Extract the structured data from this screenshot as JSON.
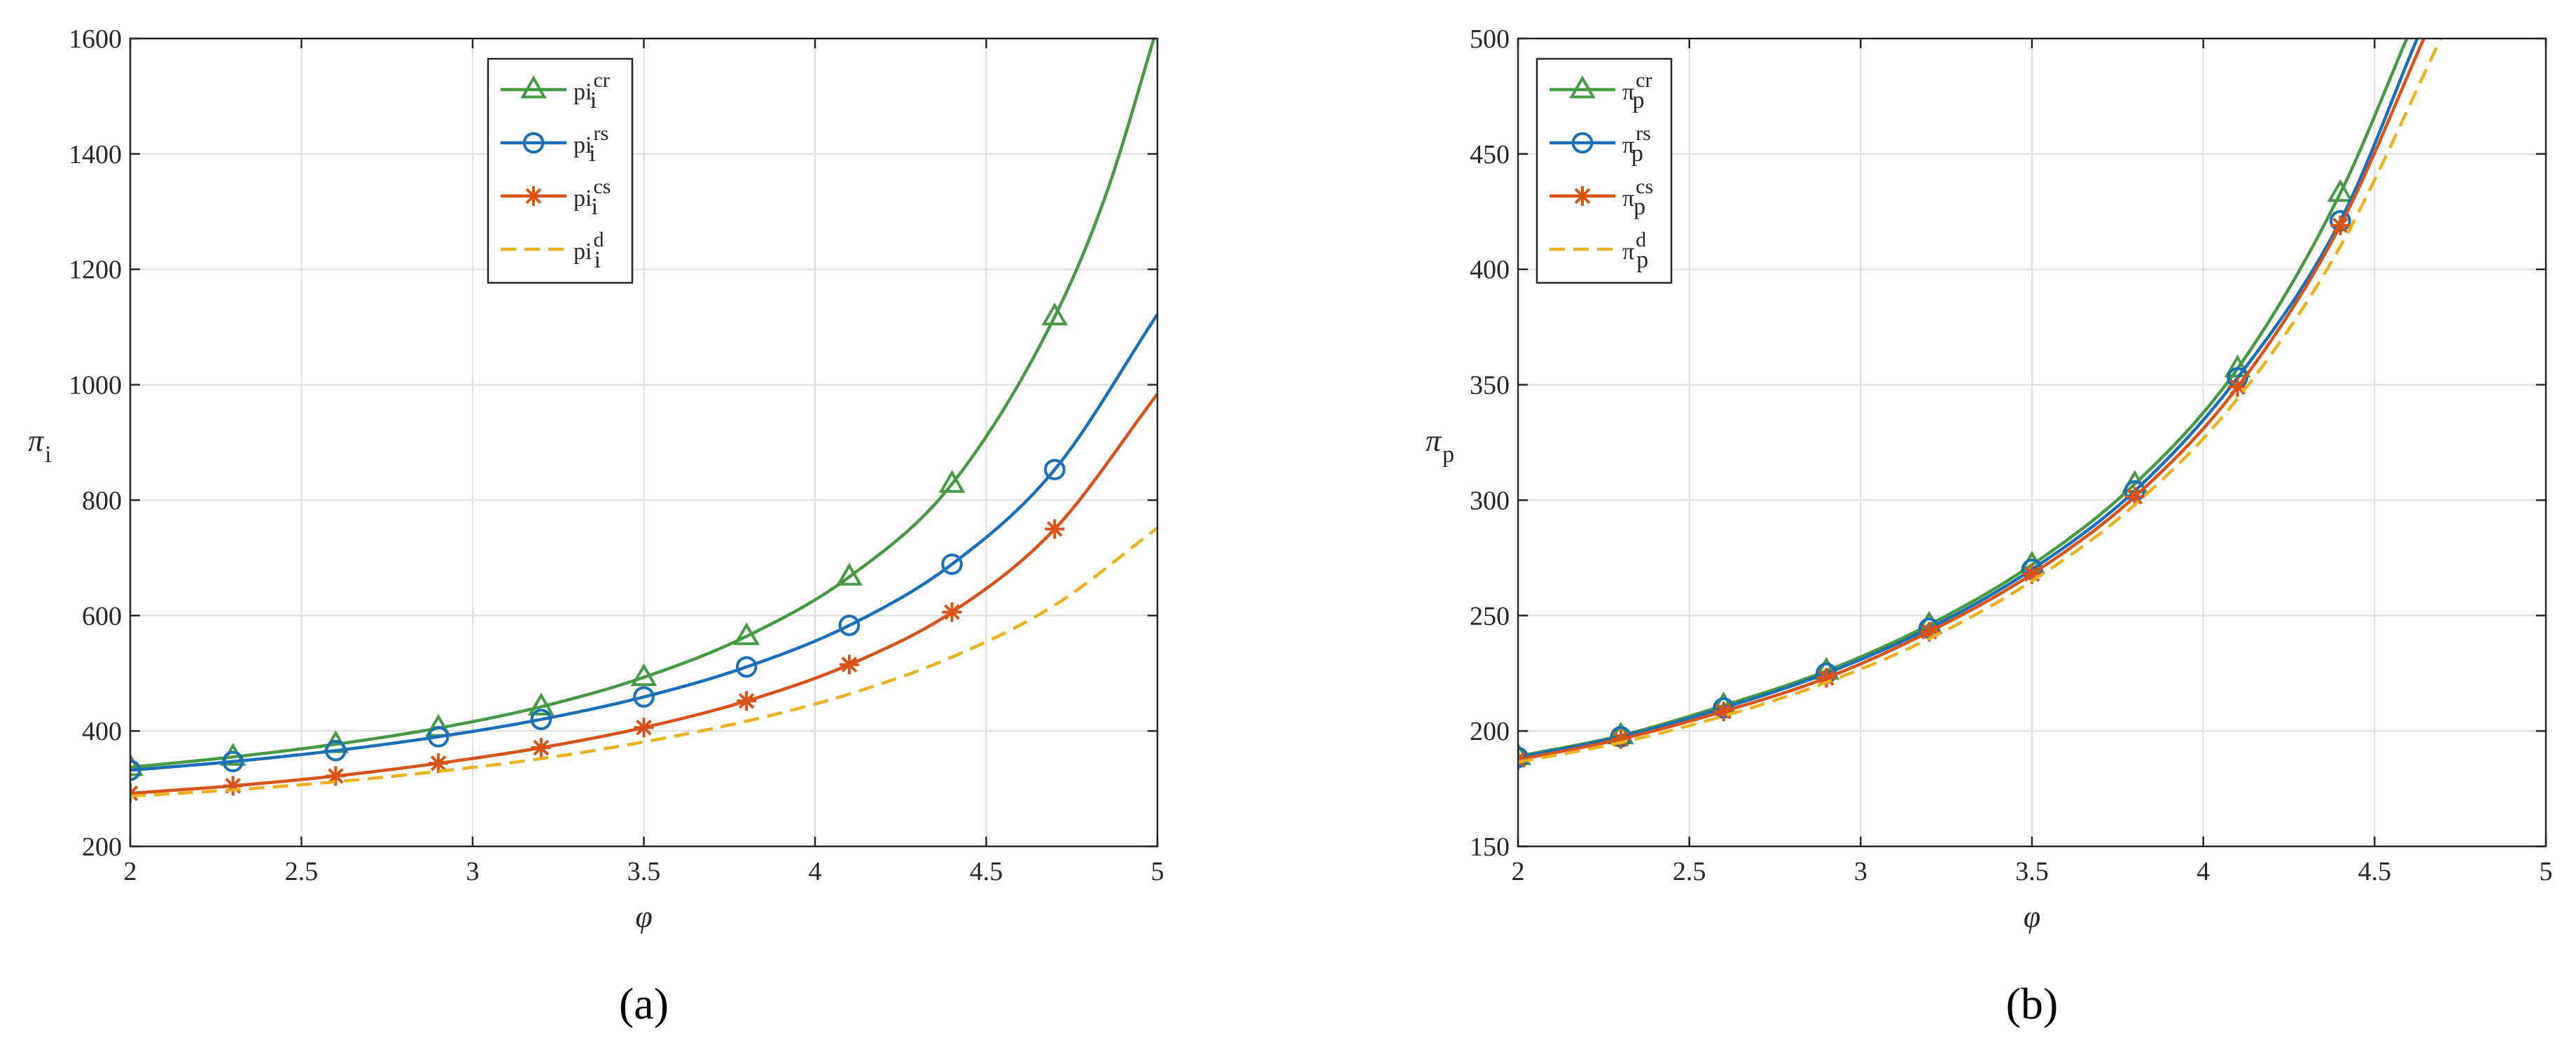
{
  "colors": {
    "cr": "#469a43",
    "rs": "#1a6fb8",
    "cs": "#d95319",
    "d": "#edb120",
    "axis": "#262626",
    "grid": "#dcdcdc"
  },
  "chart_data": [
    {
      "type": "line",
      "panel_label": "(a)",
      "xlabel": "φ",
      "ylabel_main": "π",
      "ylabel_sub": "i",
      "xlim": [
        2,
        5
      ],
      "ylim": [
        200,
        1600
      ],
      "xticks": [
        "2",
        "2.5",
        "3",
        "3.5",
        "4",
        "4.5",
        "5"
      ],
      "yticks": [
        "200",
        "400",
        "600",
        "800",
        "1000",
        "1200",
        "1400",
        "1600"
      ],
      "grid": true,
      "legend_position": "top-center",
      "series": [
        {
          "name_base": "pi",
          "name_sub": "i",
          "name_sup": "cr",
          "key": "cr",
          "marker": "triangle",
          "dash": "solid",
          "x": [
            2.0,
            2.3,
            2.6,
            2.9,
            3.2,
            3.5,
            3.8,
            4.1,
            4.4,
            4.7,
            4.85,
            5.0
          ],
          "y": [
            337,
            355,
            377,
            405,
            442,
            493,
            564,
            667,
            828,
            1118,
            1330,
            1620
          ]
        },
        {
          "name_base": "pi",
          "name_sub": "i",
          "name_sup": "rs",
          "key": "rs",
          "marker": "circle",
          "dash": "solid",
          "x": [
            2.0,
            2.3,
            2.6,
            2.9,
            3.2,
            3.5,
            3.8,
            4.1,
            4.4,
            4.7,
            5.0
          ],
          "y": [
            332,
            347,
            366,
            390,
            420,
            459,
            511,
            583,
            689,
            853,
            1122
          ]
        },
        {
          "name_base": "pi",
          "name_sub": "i",
          "name_sup": "cs",
          "key": "cs",
          "marker": "asterisk",
          "dash": "solid",
          "x": [
            2.0,
            2.3,
            2.6,
            2.9,
            3.2,
            3.5,
            3.8,
            4.1,
            4.4,
            4.7,
            5.0
          ],
          "y": [
            292,
            305,
            322,
            344,
            371,
            406,
            452,
            515,
            606,
            750,
            984
          ]
        },
        {
          "name_base": "pi",
          "name_sub": "i",
          "name_sup": "d",
          "key": "d",
          "marker": "none",
          "dash": "dashed",
          "x": [
            2.0,
            2.3,
            2.6,
            2.9,
            3.2,
            3.5,
            3.8,
            4.1,
            4.4,
            4.7,
            5.0
          ],
          "y": [
            287,
            298,
            312,
            330,
            352,
            381,
            417,
            464,
            528,
            618,
            752
          ]
        }
      ]
    },
    {
      "type": "line",
      "panel_label": "(b)",
      "xlabel": "φ",
      "ylabel_main": "π",
      "ylabel_sub": "p",
      "xlim": [
        2,
        5
      ],
      "ylim": [
        150,
        500
      ],
      "xticks": [
        "2",
        "2.5",
        "3",
        "3.5",
        "4",
        "4.5",
        "5"
      ],
      "yticks": [
        "150",
        "200",
        "250",
        "300",
        "350",
        "400",
        "450",
        "500"
      ],
      "grid": true,
      "legend_position": "top-left",
      "series": [
        {
          "name_base": "π",
          "name_sub": "p",
          "name_sup": "cr",
          "key": "cr",
          "marker": "triangle",
          "dash": "solid",
          "x": [
            2.0,
            2.3,
            2.6,
            2.9,
            3.2,
            3.5,
            3.8,
            4.1,
            4.4,
            4.6
          ],
          "y": [
            189,
            198,
            211,
            226,
            246,
            272,
            307,
            357,
            433,
            502
          ]
        },
        {
          "name_base": "π",
          "name_sub": "p",
          "name_sup": "rs",
          "key": "rs",
          "marker": "circle",
          "dash": "solid",
          "x": [
            2.0,
            2.3,
            2.6,
            2.9,
            3.2,
            3.5,
            3.8,
            4.1,
            4.4,
            4.63
          ],
          "y": [
            188.5,
            197.5,
            210,
            225,
            244.5,
            270,
            304,
            353,
            421,
            502
          ]
        },
        {
          "name_base": "π",
          "name_sub": "p",
          "name_sup": "cs",
          "key": "cs",
          "marker": "asterisk",
          "dash": "solid",
          "x": [
            2.0,
            2.3,
            2.6,
            2.9,
            3.2,
            3.5,
            3.8,
            4.1,
            4.4,
            4.65
          ],
          "y": [
            187.5,
            196.5,
            208.5,
            223,
            243,
            268,
            301.5,
            349,
            419,
            502
          ]
        },
        {
          "name_base": "π",
          "name_sub": "p",
          "name_sup": "d",
          "key": "d",
          "marker": "none",
          "dash": "dashed",
          "x": [
            2.0,
            2.3,
            2.6,
            2.9,
            3.2,
            3.5,
            3.8,
            4.1,
            4.4,
            4.7
          ],
          "y": [
            186.5,
            195,
            206.5,
            221,
            240,
            265,
            298,
            344,
            410,
            502
          ]
        }
      ]
    }
  ]
}
